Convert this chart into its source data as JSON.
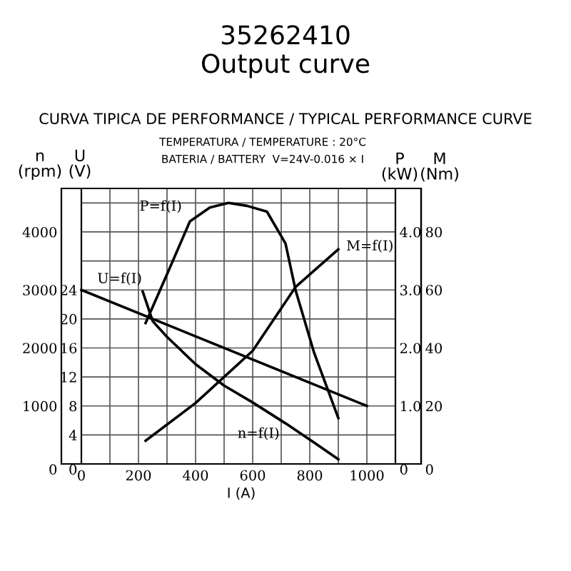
{
  "chart_data": [
    {
      "type": "line",
      "title": "35262410",
      "subtitle": "Output curve",
      "annotations": [
        "CURVA TIPICA DE PERFORMANCE / TYPICAL PERFORMANCE CURVE",
        "TEMPERATURA / TEMPERATURE : 20°C",
        "BATERIA / BATTERY  V=24V-0.016 × I"
      ],
      "xlabel": "I (A)",
      "ylabel": "n\n(rpm)",
      "y2label": "U\n(V)",
      "xlim": [
        -70,
        1190
      ],
      "xticks": [
        0,
        {
          "value": 100,
          "label": null
        },
        200,
        {
          "value": 300,
          "label": null
        },
        400,
        {
          "value": 500,
          "label": null
        },
        600,
        {
          "value": 700,
          "label": null
        },
        800,
        {
          "value": 900,
          "label": null
        },
        1000,
        {
          "value": 1100,
          "label": null
        }
      ],
      "ylim": [
        0,
        4750
      ],
      "yticks": [
        0,
        {
          "value": 500,
          "label": null
        },
        1000,
        {
          "value": 1500,
          "label": null
        },
        2000,
        {
          "value": 2500,
          "label": null
        },
        3000,
        {
          "value": 3500,
          "label": null
        },
        4000,
        {
          "value": 4500,
          "label": null
        }
      ],
      "y2lim": [
        0,
        38
      ],
      "y2ticks": [
        0,
        4,
        8,
        12,
        16,
        20,
        24
      ],
      "grid": true,
      "legend": false,
      "marker": "none",
      "line_style": "solid",
      "series": [
        {
          "name": "U=f(I)",
          "color": "#000000",
          "axis": "y2",
          "x": [
            0,
            1000
          ],
          "values": [
            24,
            8
          ]
        },
        {
          "name": "n=f(I)",
          "color": "#000000",
          "x": [
            215,
            250,
            300,
            400,
            500,
            600,
            715,
            815,
            900
          ],
          "values": [
            2970,
            2460,
            2190,
            1720,
            1350,
            1060,
            700,
            370,
            80
          ]
        }
      ]
    },
    {
      "type": "line",
      "ylabel": "P\n(kW)",
      "y2label": "M\n(Nm)",
      "tick_labels": "y",
      "xlim": [
        -70,
        1190
      ],
      "ylim": [
        0,
        4.75
      ],
      "yticks": [
        0,
        {
          "value": 1,
          "label": "1.0"
        },
        {
          "value": 2,
          "label": "2.0"
        },
        {
          "value": 3,
          "label": "3.0"
        },
        {
          "value": 4,
          "label": "4.0"
        }
      ],
      "y2lim": [
        0,
        95
      ],
      "y2ticks": [
        0,
        20,
        40,
        60,
        80
      ],
      "marker": "none",
      "line_style": "solid",
      "series": [
        {
          "name": "P=f(I)",
          "color": "#000000",
          "x": [
            225,
            300,
            380,
            450,
            515,
            580,
            650,
            715,
            750,
            815,
            900
          ],
          "values": [
            2.43,
            3.27,
            4.18,
            4.42,
            4.5,
            4.45,
            4.35,
            3.8,
            3.0,
            1.92,
            0.79
          ]
        },
        {
          "name": "M=f(I)",
          "color": "#000000",
          "axis": "y2",
          "x": [
            225,
            400,
            600,
            750,
            900
          ],
          "values": [
            8,
            21,
            39,
            61,
            74
          ]
        }
      ]
    }
  ]
}
